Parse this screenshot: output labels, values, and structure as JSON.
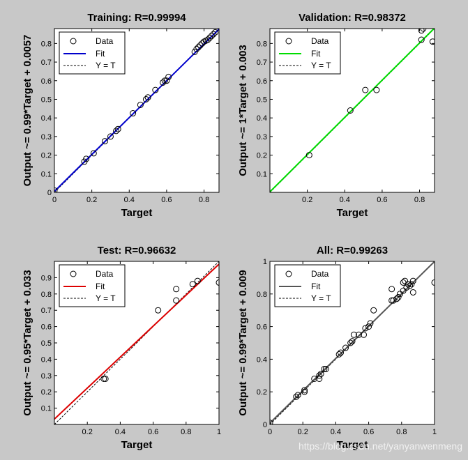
{
  "colors": {
    "background": "#c8c8c8",
    "axes_bg": "#ffffff",
    "target_line": "#000000",
    "marker": "#000000"
  },
  "watermark": "https://blog.csdn.net/yanyanwenmeng",
  "chart_data": [
    {
      "id": "training",
      "type": "scatter",
      "title": "Training: R=0.99994",
      "xlabel": "Target",
      "ylabel": "Output ~= 0.99*Target + 0.0057",
      "xlim": [
        0,
        0.88
      ],
      "ylim": [
        0,
        0.88
      ],
      "xticks": [
        0,
        0.2,
        0.4,
        0.6,
        0.8
      ],
      "xtick_labels": [
        "0",
        "0.2",
        "0.4",
        "0.6",
        "0.8"
      ],
      "yticks": [
        0,
        0.1,
        0.2,
        0.3,
        0.4,
        0.5,
        0.6,
        0.7,
        0.8
      ],
      "ytick_labels": [
        "0",
        "0.1",
        "0.2",
        "0.3",
        "0.4",
        "0.5",
        "0.6",
        "0.7",
        "0.8"
      ],
      "fit": {
        "slope": 0.99,
        "intercept": 0.0057,
        "color": "#0000cc"
      },
      "legend": [
        "Data",
        "Fit",
        "Y = T"
      ],
      "points": [
        [
          0.0,
          0.01
        ],
        [
          0.16,
          0.165
        ],
        [
          0.17,
          0.18
        ],
        [
          0.21,
          0.21
        ],
        [
          0.27,
          0.275
        ],
        [
          0.3,
          0.3
        ],
        [
          0.33,
          0.33
        ],
        [
          0.34,
          0.34
        ],
        [
          0.42,
          0.425
        ],
        [
          0.46,
          0.47
        ],
        [
          0.49,
          0.5
        ],
        [
          0.5,
          0.51
        ],
        [
          0.54,
          0.55
        ],
        [
          0.58,
          0.59
        ],
        [
          0.59,
          0.6
        ],
        [
          0.6,
          0.6
        ],
        [
          0.61,
          0.62
        ],
        [
          0.75,
          0.755
        ],
        [
          0.76,
          0.77
        ],
        [
          0.77,
          0.78
        ],
        [
          0.78,
          0.79
        ],
        [
          0.79,
          0.8
        ],
        [
          0.8,
          0.81
        ],
        [
          0.81,
          0.815
        ],
        [
          0.82,
          0.82
        ],
        [
          0.83,
          0.83
        ],
        [
          0.84,
          0.84
        ],
        [
          0.85,
          0.85
        ],
        [
          0.86,
          0.86
        ]
      ]
    },
    {
      "id": "validation",
      "type": "scatter",
      "title": "Validation: R=0.98372",
      "xlabel": "Target",
      "ylabel": "Output ~= 1*Target + 0.003",
      "xlim": [
        0,
        0.88
      ],
      "ylim": [
        0,
        0.88
      ],
      "xticks": [
        0.2,
        0.4,
        0.6,
        0.8
      ],
      "xtick_labels": [
        "0.2",
        "0.4",
        "0.6",
        "0.8"
      ],
      "yticks": [
        0.1,
        0.2,
        0.3,
        0.4,
        0.5,
        0.6,
        0.7,
        0.8
      ],
      "ytick_labels": [
        "0.1",
        "0.2",
        "0.3",
        "0.4",
        "0.5",
        "0.6",
        "0.7",
        "0.8"
      ],
      "fit": {
        "slope": 1,
        "intercept": 0.003,
        "color": "#00dd00"
      },
      "legend": [
        "Data",
        "Fit",
        "Y = T"
      ],
      "points": [
        [
          0.21,
          0.2
        ],
        [
          0.43,
          0.44
        ],
        [
          0.51,
          0.55
        ],
        [
          0.57,
          0.55
        ],
        [
          0.81,
          0.82
        ],
        [
          0.81,
          0.87
        ],
        [
          0.82,
          0.88
        ],
        [
          0.87,
          0.81
        ]
      ]
    },
    {
      "id": "test",
      "type": "scatter",
      "title": "Test: R=0.96632",
      "xlabel": "Target",
      "ylabel": "Output ~= 0.95*Target + 0.033",
      "xlim": [
        0,
        1
      ],
      "ylim": [
        0,
        1
      ],
      "xticks": [
        0.2,
        0.4,
        0.6,
        0.8,
        1
      ],
      "xtick_labels": [
        "0.2",
        "0.4",
        "0.6",
        "0.8",
        "1"
      ],
      "yticks": [
        0.1,
        0.2,
        0.3,
        0.4,
        0.5,
        0.6,
        0.7,
        0.8,
        0.9
      ],
      "ytick_labels": [
        "0.1",
        "0.2",
        "0.3",
        "0.4",
        "0.5",
        "0.6",
        "0.7",
        "0.8",
        "0.9"
      ],
      "fit": {
        "slope": 0.95,
        "intercept": 0.033,
        "color": "#dd0000"
      },
      "legend": [
        "Data",
        "Fit",
        "Y = T"
      ],
      "points": [
        [
          0.3,
          0.28
        ],
        [
          0.31,
          0.28
        ],
        [
          0.63,
          0.7
        ],
        [
          0.74,
          0.83
        ],
        [
          0.74,
          0.76
        ],
        [
          0.84,
          0.86
        ],
        [
          0.87,
          0.88
        ],
        [
          1.0,
          0.87
        ]
      ]
    },
    {
      "id": "all",
      "type": "scatter",
      "title": "All: R=0.99263",
      "xlabel": "Target",
      "ylabel": "Output ~= 0.99*Target + 0.009",
      "xlim": [
        0,
        1
      ],
      "ylim": [
        0,
        1
      ],
      "xticks": [
        0,
        0.2,
        0.4,
        0.6,
        0.8,
        1
      ],
      "xtick_labels": [
        "0",
        "0.2",
        "0.4",
        "0.6",
        "0.8",
        "1"
      ],
      "yticks": [
        0,
        0.2,
        0.4,
        0.6,
        0.8,
        1
      ],
      "ytick_labels": [
        "0",
        "0.2",
        "0.4",
        "0.6",
        "0.8",
        "1"
      ],
      "fit": {
        "slope": 0.99,
        "intercept": 0.009,
        "color": "#555555"
      },
      "legend": [
        "Data",
        "Fit",
        "Y = T"
      ],
      "points": [
        [
          0.0,
          0.01
        ],
        [
          0.16,
          0.17
        ],
        [
          0.17,
          0.18
        ],
        [
          0.21,
          0.2
        ],
        [
          0.21,
          0.21
        ],
        [
          0.27,
          0.28
        ],
        [
          0.3,
          0.28
        ],
        [
          0.3,
          0.3
        ],
        [
          0.31,
          0.31
        ],
        [
          0.33,
          0.34
        ],
        [
          0.34,
          0.34
        ],
        [
          0.42,
          0.43
        ],
        [
          0.43,
          0.44
        ],
        [
          0.46,
          0.47
        ],
        [
          0.49,
          0.5
        ],
        [
          0.5,
          0.51
        ],
        [
          0.51,
          0.55
        ],
        [
          0.54,
          0.55
        ],
        [
          0.57,
          0.55
        ],
        [
          0.58,
          0.59
        ],
        [
          0.6,
          0.6
        ],
        [
          0.61,
          0.62
        ],
        [
          0.63,
          0.7
        ],
        [
          0.74,
          0.76
        ],
        [
          0.74,
          0.83
        ],
        [
          0.75,
          0.76
        ],
        [
          0.77,
          0.77
        ],
        [
          0.78,
          0.78
        ],
        [
          0.79,
          0.8
        ],
        [
          0.81,
          0.82
        ],
        [
          0.81,
          0.87
        ],
        [
          0.82,
          0.88
        ],
        [
          0.83,
          0.84
        ],
        [
          0.84,
          0.86
        ],
        [
          0.85,
          0.85
        ],
        [
          0.86,
          0.86
        ],
        [
          0.87,
          0.81
        ],
        [
          0.87,
          0.88
        ],
        [
          1.0,
          0.87
        ]
      ]
    }
  ]
}
